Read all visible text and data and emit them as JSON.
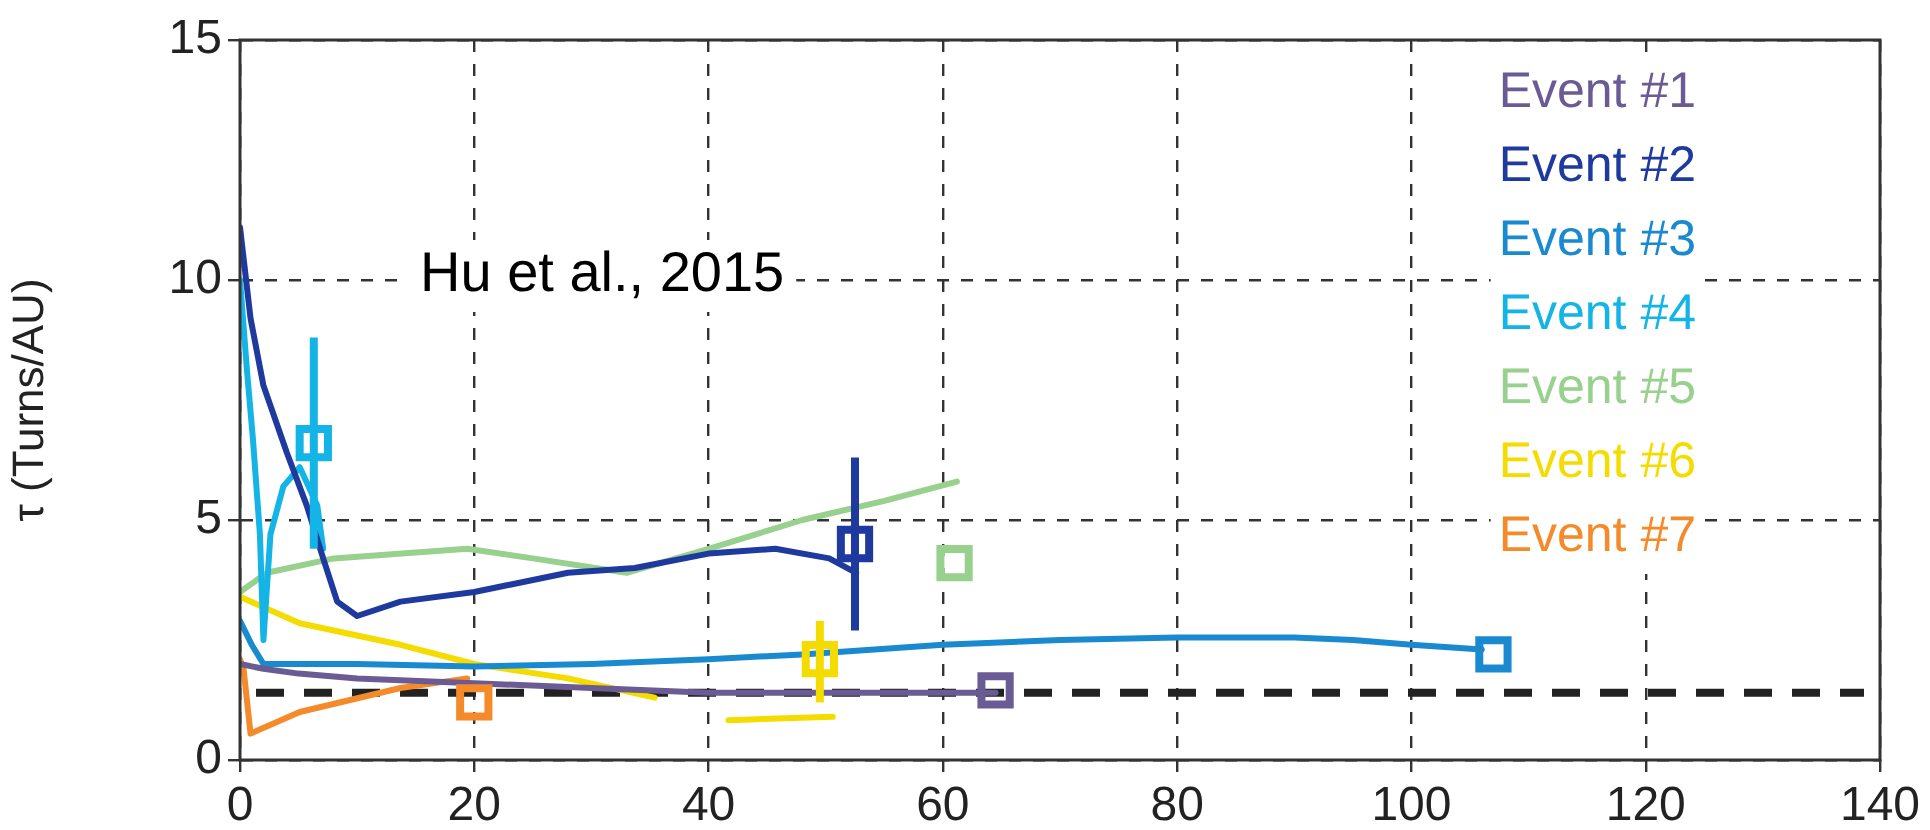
{
  "chart_data": {
    "type": "line",
    "ylabel": "τ (Turns/AU)",
    "xlim": [
      0,
      140
    ],
    "xticks": [
      0,
      20,
      40,
      60,
      80,
      100,
      120,
      140
    ],
    "ylim": [
      0,
      15
    ],
    "yticks": [
      0,
      5,
      10,
      15
    ],
    "grid": true,
    "legend": "top right",
    "annotations": [
      "Hu et al., 2015"
    ],
    "ref_lines": [
      {
        "axis": "y",
        "value": 1.4,
        "color": "#222222",
        "line_style": "dashed"
      }
    ],
    "series": [
      {
        "name": "Event #1",
        "marker": "none",
        "color": "#6b5b95",
        "x": [
          0,
          2,
          5,
          10,
          20,
          30,
          40,
          50,
          60,
          64.5
        ],
        "values": [
          2.0,
          1.9,
          1.8,
          1.7,
          1.6,
          1.5,
          1.4,
          1.4,
          1.4,
          1.4
        ]
      },
      {
        "name": "Event #2",
        "marker": "none",
        "color": "#1f3a9e",
        "x": [
          0,
          0.9,
          2,
          4,
          5.7,
          7.1,
          8.3,
          10,
          13.7,
          20,
          28,
          33.7,
          40,
          45.7,
          50.3,
          52.6
        ],
        "values": [
          11.1,
          9.2,
          7.8,
          6.4,
          5.3,
          4.2,
          3.3,
          3.0,
          3.3,
          3.5,
          3.9,
          4.0,
          4.3,
          4.4,
          4.2,
          3.9
        ]
      },
      {
        "name": "Event #3",
        "marker": "none",
        "color": "#1a8ad0",
        "x": [
          0,
          1,
          2,
          10,
          20,
          30,
          40,
          48,
          60,
          70,
          80,
          90,
          95,
          100,
          106
        ],
        "values": [
          2.9,
          2.4,
          2.0,
          2.0,
          1.95,
          2.0,
          2.1,
          2.2,
          2.4,
          2.5,
          2.55,
          2.55,
          2.5,
          2.4,
          2.3
        ]
      },
      {
        "name": "Event #4",
        "marker": "none",
        "color": "#14b4e6",
        "x": [
          0,
          0.6,
          1.1,
          1.7,
          2,
          2.6,
          3.7,
          5.1,
          6.6,
          7.1
        ],
        "values": [
          10,
          8.1,
          6.7,
          4.7,
          2.5,
          4.7,
          5.7,
          6.1,
          5.3,
          4.4
        ]
      },
      {
        "name": "Event #5",
        "marker": "none",
        "color": "#98d08e",
        "x": [
          0,
          2.3,
          8,
          19.4,
          25,
          33,
          40,
          48,
          55,
          61.2
        ],
        "values": [
          3.5,
          3.9,
          4.2,
          4.4,
          4.2,
          3.9,
          4.4,
          5.0,
          5.4,
          5.8
        ]
      },
      {
        "name": "Event #6",
        "marker": "none",
        "color": "#f5dc00",
        "x": [
          0,
          5.1,
          13.7,
          20,
          28,
          35.4,
          38,
          41.7,
          50.6
        ],
        "values": [
          3.4,
          2.85,
          2.4,
          2.0,
          1.7,
          1.3,
          null,
          0.83,
          0.9
        ]
      },
      {
        "name": "Event #7",
        "marker": "none",
        "color": "#f58a2a",
        "x": [
          0,
          0.3,
          0.9,
          5.1,
          13.7,
          19.4
        ],
        "values": [
          2.1,
          1.9,
          0.55,
          1.0,
          1.5,
          1.7
        ]
      },
      {
        "type": "scatter",
        "marker": "square",
        "color": "#6b5b95",
        "x": [
          64.5
        ],
        "values": [
          1.45
        ]
      },
      {
        "type": "scatter",
        "marker": "square",
        "color": "#1f3a9e",
        "x": [
          52.5
        ],
        "values": [
          4.5
        ],
        "errors": [
          [
            2.7,
            6.3
          ]
        ]
      },
      {
        "type": "scatter",
        "marker": "square",
        "color": "#1a8ad0",
        "x": [
          107
        ],
        "values": [
          2.2
        ]
      },
      {
        "type": "scatter",
        "marker": "square",
        "color": "#14b4e6",
        "x": [
          6.3
        ],
        "values": [
          6.6
        ],
        "errors": [
          [
            4.4,
            8.8
          ]
        ]
      },
      {
        "type": "scatter",
        "marker": "square",
        "color": "#98d08e",
        "x": [
          61
        ],
        "values": [
          4.1
        ]
      },
      {
        "type": "scatter",
        "marker": "square",
        "color": "#f5dc00",
        "x": [
          49.5
        ],
        "values": [
          2.1
        ],
        "errors": [
          [
            1.2,
            2.9
          ]
        ]
      },
      {
        "type": "scatter",
        "marker": "square",
        "color": "#f58a2a",
        "x": [
          20
        ],
        "values": [
          1.2
        ]
      }
    ]
  }
}
